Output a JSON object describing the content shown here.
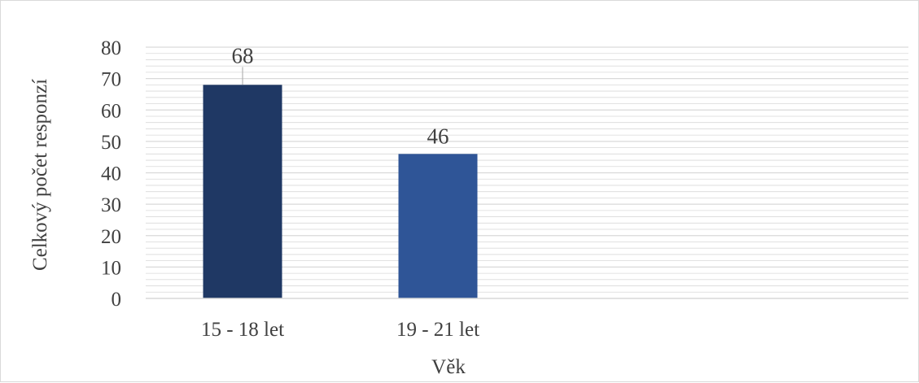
{
  "chart_data": {
    "type": "bar",
    "categories": [
      "15 - 18 let",
      "19 - 21 let"
    ],
    "values": [
      68,
      46
    ],
    "ylim": [
      0,
      80
    ],
    "yticks": [
      0,
      10,
      20,
      30,
      40,
      50,
      60,
      70,
      80
    ],
    "xlabel": "Věk",
    "ylabel": "Celkový počet responzí",
    "grid": "on (fine horizontal lines)",
    "legend": "none",
    "data_labels": [
      "68",
      "46"
    ],
    "bar_colors": [
      "#1f3864",
      "#2f5597"
    ],
    "gridline_color": "#d9d9d9",
    "text_color": "#404040"
  }
}
